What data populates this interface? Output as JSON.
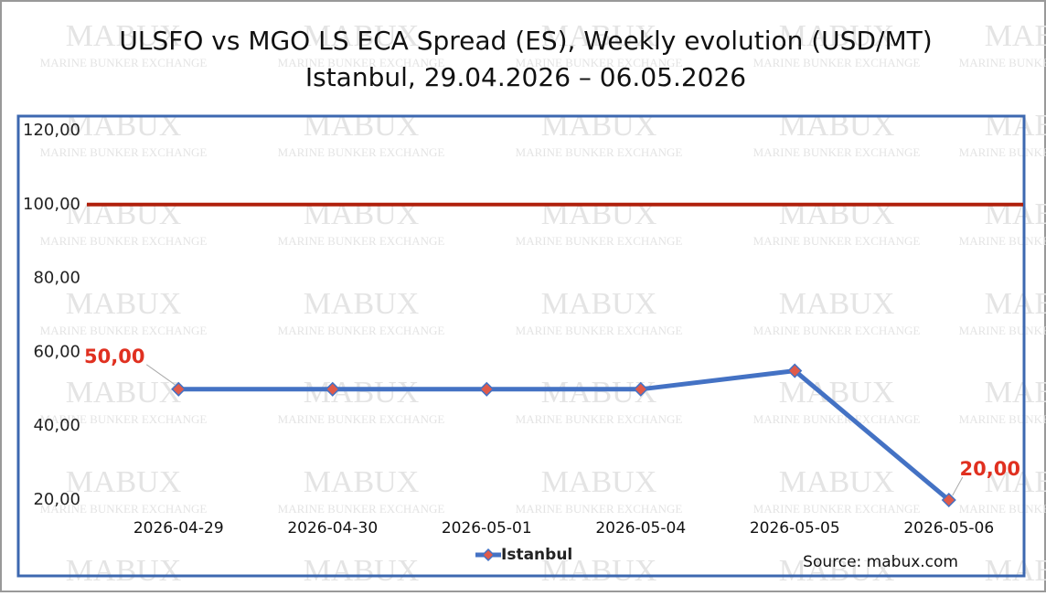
{
  "chart_data": {
    "type": "line",
    "title": "ULSFO vs MGO LS ECA Spread (ES), Weekly evolution (USD/MT)",
    "subtitle": "Istanbul, 29.04.2026 – 06.05.2026",
    "categories": [
      "2026-04-29",
      "2026-04-30",
      "2026-05-01",
      "2026-05-04",
      "2026-05-05",
      "2026-05-06"
    ],
    "series": [
      {
        "name": "Istanbul",
        "color": "#4472c4",
        "marker_color": "#e05a4a",
        "values": [
          50,
          50,
          50,
          50,
          55,
          20
        ],
        "value_labels": [
          "50,00",
          null,
          null,
          null,
          null,
          "20,00"
        ]
      }
    ],
    "ylim": [
      20,
      120
    ],
    "yticks": [
      {
        "value": 20,
        "label": "20,00"
      },
      {
        "value": 40,
        "label": "40,00"
      },
      {
        "value": 60,
        "label": "60,00"
      },
      {
        "value": 80,
        "label": "80,00"
      },
      {
        "value": 100,
        "label": "100,00"
      },
      {
        "value": 120,
        "label": "120,00"
      }
    ],
    "grid": false,
    "reference_lines": [
      {
        "value": 100,
        "color": "#b0200c"
      }
    ],
    "legend": "bottom",
    "source": "Source: mabux.com",
    "watermark": {
      "title": "MABUX",
      "subtitle": "MARINE BUNKER EXCHANGE"
    }
  }
}
